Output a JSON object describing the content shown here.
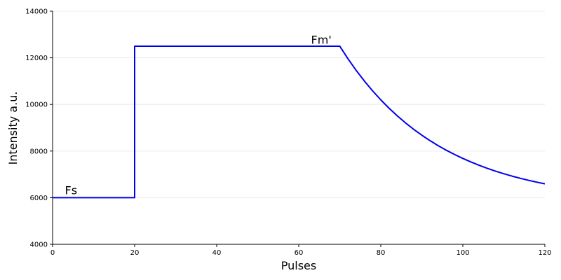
{
  "chart_data": {
    "type": "line",
    "title": "",
    "xlabel": "Pulses",
    "ylabel": "Intensity a.u.",
    "xlim": [
      0,
      120
    ],
    "ylim": [
      4000,
      14000
    ],
    "xticks": [
      0,
      20,
      40,
      60,
      80,
      100,
      120
    ],
    "yticks": [
      4000,
      6000,
      8000,
      10000,
      12000,
      14000
    ],
    "grid": "horizontal",
    "series": [
      {
        "color": "#0000ee",
        "x": [
          0,
          20,
          20,
          70,
          72,
          74,
          76,
          78,
          80,
          82,
          84,
          86,
          88,
          90,
          92,
          94,
          96,
          98,
          100,
          102,
          104,
          106,
          108,
          110,
          112,
          114,
          116,
          118,
          120
        ],
        "y": [
          6000,
          6000,
          12500,
          12500,
          11959,
          11462,
          11005,
          10584,
          10197,
          9841,
          9514,
          9213,
          8936,
          8681,
          8447,
          8231,
          8033,
          7851,
          7684,
          7530,
          7388,
          7257,
          7137,
          7027,
          6925,
          6832,
          6746,
          6667,
          6594
        ]
      }
    ],
    "annotations": [
      {
        "text": "Fs",
        "x": 3,
        "y": 6150
      },
      {
        "text": "Fm'",
        "x": 63,
        "y": 12600
      }
    ]
  }
}
